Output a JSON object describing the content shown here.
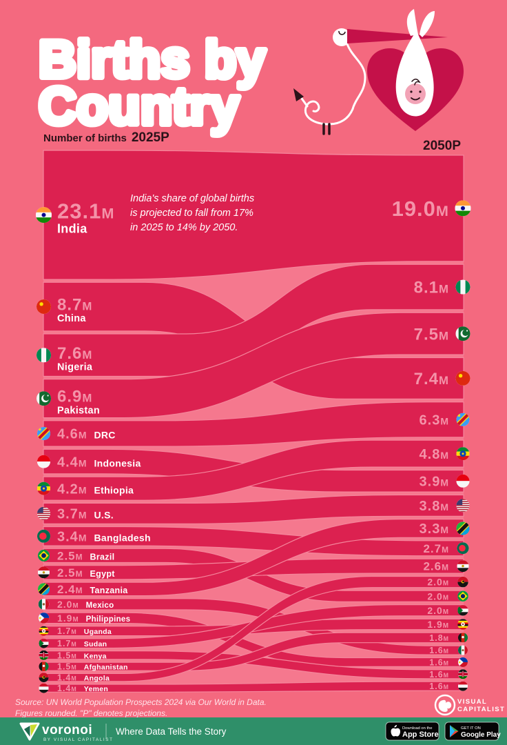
{
  "title": {
    "line1": "Births by",
    "line2": "Country"
  },
  "axis": {
    "label": "Number of births",
    "left_year": "2025P",
    "right_year": "2050P"
  },
  "annotation": {
    "lines": [
      "India's share of global births",
      "is projected to fall from 17%",
      "in 2025 to 14% by 2050."
    ]
  },
  "chart_data": {
    "type": "slope-flow",
    "unit": "births (millions)",
    "columns": [
      "2025P",
      "2050P"
    ],
    "countries": [
      {
        "name": "India",
        "flag_icon": "flag-india",
        "v2025": 23.1,
        "v2050": 19.0,
        "label2025": "23.1M",
        "label2050": "19.0M",
        "right_rank": 0
      },
      {
        "name": "China",
        "flag_icon": "flag-china",
        "v2025": 8.7,
        "v2050": 7.4,
        "label2025": "8.7M",
        "label2050": "7.4M",
        "right_rank": 3
      },
      {
        "name": "Nigeria",
        "flag_icon": "flag-nigeria",
        "v2025": 7.6,
        "v2050": 8.1,
        "label2025": "7.6M",
        "label2050": "8.1M",
        "right_rank": 1
      },
      {
        "name": "Pakistan",
        "flag_icon": "flag-pakistan",
        "v2025": 6.9,
        "v2050": 7.5,
        "label2025": "6.9M",
        "label2050": "7.5M",
        "right_rank": 2
      },
      {
        "name": "DRC",
        "flag_icon": "flag-drc",
        "v2025": 4.6,
        "v2050": 6.3,
        "label2025": "4.6M",
        "label2050": "6.3M",
        "right_rank": 4
      },
      {
        "name": "Indonesia",
        "flag_icon": "flag-indonesia",
        "v2025": 4.4,
        "v2050": 3.9,
        "label2025": "4.4M",
        "label2050": "3.9M",
        "right_rank": 6
      },
      {
        "name": "Ethiopia",
        "flag_icon": "flag-ethiopia",
        "v2025": 4.2,
        "v2050": 4.8,
        "label2025": "4.2M",
        "label2050": "4.8M",
        "right_rank": 5
      },
      {
        "name": "U.S.",
        "flag_icon": "flag-us",
        "v2025": 3.7,
        "v2050": 3.8,
        "label2025": "3.7M",
        "label2050": "3.8M",
        "right_rank": 7
      },
      {
        "name": "Bangladesh",
        "flag_icon": "flag-bangladesh",
        "v2025": 3.4,
        "v2050": 2.7,
        "label2025": "3.4M",
        "label2050": "2.7M",
        "right_rank": 9
      },
      {
        "name": "Brazil",
        "flag_icon": "flag-brazil",
        "v2025": 2.5,
        "v2050": 2.0,
        "label2025": "2.5M",
        "label2050": "2.0M",
        "right_rank": 12
      },
      {
        "name": "Egypt",
        "flag_icon": "flag-egypt",
        "v2025": 2.5,
        "v2050": 2.6,
        "label2025": "2.5M",
        "label2050": "2.6M",
        "right_rank": 10
      },
      {
        "name": "Tanzania",
        "flag_icon": "flag-tanzania",
        "v2025": 2.4,
        "v2050": 3.3,
        "label2025": "2.4M",
        "label2050": "3.3M",
        "right_rank": 8
      },
      {
        "name": "Mexico",
        "flag_icon": "flag-mexico",
        "v2025": 2.0,
        "v2050": 1.6,
        "label2025": "2.0M",
        "label2050": "1.6M",
        "right_rank": 16
      },
      {
        "name": "Philippines",
        "flag_icon": "flag-philippines",
        "v2025": 1.9,
        "v2050": 1.6,
        "label2025": "1.9M",
        "label2050": "1.6M",
        "right_rank": 17
      },
      {
        "name": "Uganda",
        "flag_icon": "flag-uganda",
        "v2025": 1.7,
        "v2050": 1.9,
        "label2025": "1.7M",
        "label2050": "1.9M",
        "right_rank": 14
      },
      {
        "name": "Sudan",
        "flag_icon": "flag-sudan",
        "v2025": 1.7,
        "v2050": 2.0,
        "label2025": "1.7M",
        "label2050": "2.0M",
        "right_rank": 13
      },
      {
        "name": "Kenya",
        "flag_icon": "flag-kenya",
        "v2025": 1.5,
        "v2050": 1.6,
        "label2025": "1.5M",
        "label2050": "1.6M",
        "right_rank": 18
      },
      {
        "name": "Afghanistan",
        "flag_icon": "flag-afghanistan",
        "v2025": 1.5,
        "v2050": 1.8,
        "label2025": "1.5M",
        "label2050": "1.8M",
        "right_rank": 15
      },
      {
        "name": "Angola",
        "flag_icon": "flag-angola",
        "v2025": 1.4,
        "v2050": 2.0,
        "label2025": "1.4M",
        "label2050": "2.0M",
        "right_rank": 11
      },
      {
        "name": "Yemen",
        "flag_icon": "flag-yemen",
        "v2025": 1.4,
        "v2050": 1.6,
        "label2025": "1.4M",
        "label2050": "1.6M",
        "right_rank": 19
      }
    ]
  },
  "source": {
    "line1": "Source: UN World Population Prospects 2024 via Our World in Data.",
    "line2": "Figures rounded. \"P\" denotes projections."
  },
  "branding": {
    "vc_line1": "VISUAL",
    "vc_line2": "CAPITALIST"
  },
  "footer": {
    "logo_text": "voronoi",
    "logo_sub": "BY VISUAL CAPITALIST",
    "tagline": "Where Data Tells the Story",
    "appstore_small": "Download on the",
    "appstore_big": "App Store",
    "gplay_small": "GET IT ON",
    "gplay_big": "Google Play"
  },
  "colors": {
    "background": "#F4697F",
    "chart_bg": "#F5788E",
    "ribbon": "#DC2150",
    "ribbon_edge": "#F5859B",
    "value_text": "#F493A9",
    "dark_text": "#2B1219",
    "heart": "#C41149",
    "baby_skin": "#F2A3B6",
    "footer_green": "#2F8F69"
  }
}
